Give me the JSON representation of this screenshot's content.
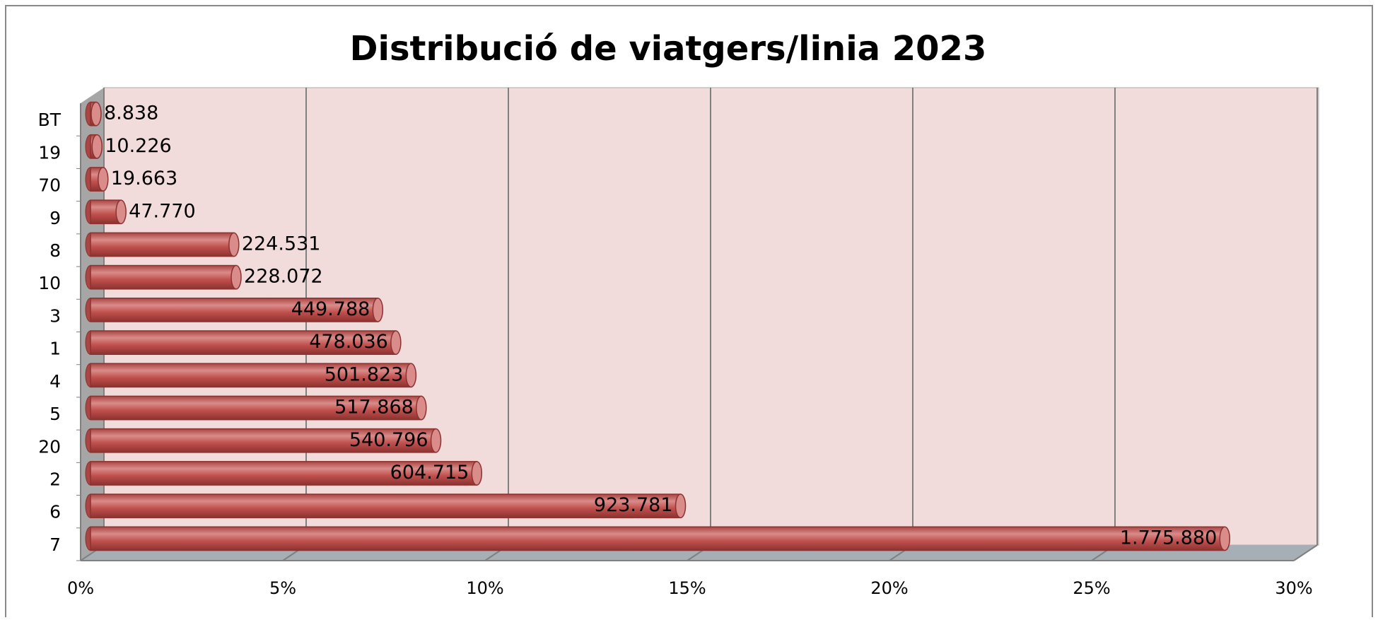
{
  "chart_data": {
    "type": "bar",
    "orientation": "horizontal",
    "title": "Distribució de viatgers/linia   2023",
    "categories": [
      "7",
      "6",
      "2",
      "20",
      "5",
      "4",
      "1",
      "3",
      "10",
      "8",
      "9",
      "70",
      "19",
      "BT"
    ],
    "values": [
      28.047,
      14.59,
      9.551,
      8.541,
      8.179,
      7.926,
      7.55,
      7.104,
      3.602,
      3.546,
      0.7545,
      0.3105,
      0.1615,
      0.1396
    ],
    "data_labels": [
      "1.775.880",
      "923.781",
      "604.715",
      "540.796",
      "517.868",
      "501.823",
      "478.036",
      "449.788",
      "228.072",
      "224.531",
      "47.770",
      "19.663",
      "10.226",
      "8.838"
    ],
    "color": "#c0504d",
    "xlim": [
      0,
      30
    ],
    "xticks": [
      {
        "value": 0,
        "label": "0%"
      },
      {
        "value": 5,
        "label": "5%"
      },
      {
        "value": 10,
        "label": "10%"
      },
      {
        "value": 15,
        "label": "15%"
      },
      {
        "value": 20,
        "label": "20%"
      },
      {
        "value": 25,
        "label": "25%"
      },
      {
        "value": 30,
        "label": "30%"
      }
    ],
    "grid": true
  }
}
